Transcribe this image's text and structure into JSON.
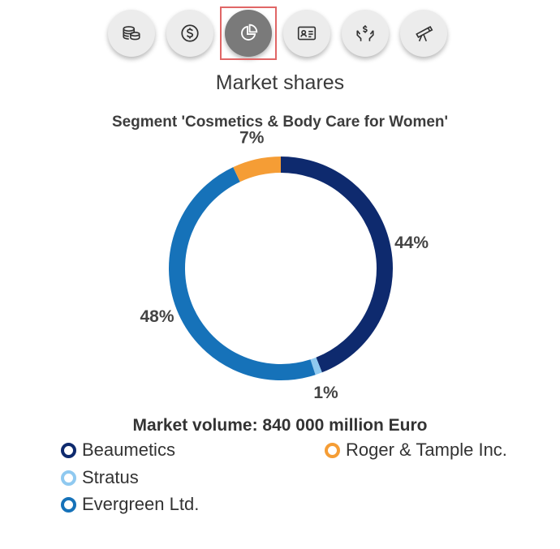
{
  "toolbar": {
    "buttons": [
      {
        "icon": "coins-stack-icon",
        "active": false
      },
      {
        "icon": "dollar-circle-icon",
        "active": false
      },
      {
        "icon": "pie-chart-icon",
        "active": true
      },
      {
        "icon": "id-card-icon",
        "active": false
      },
      {
        "icon": "hands-money-icon",
        "active": false
      },
      {
        "icon": "telescope-icon",
        "active": false
      }
    ]
  },
  "page": {
    "title": "Market shares"
  },
  "colors": {
    "beaumetics": "#0e2a6e",
    "roger_tample": "#f59d35",
    "stratus": "#8fc9f0",
    "evergreen": "#1672b9"
  },
  "chart_data": {
    "type": "pie",
    "subtype": "donut",
    "title": "Segment 'Cosmetics & Body Care for Women'",
    "slices": [
      {
        "name": "Beaumetics",
        "value": 44,
        "label": "44%",
        "color": "#0e2a6e"
      },
      {
        "name": "Stratus",
        "value": 1,
        "label": "1%",
        "color": "#8fc9f0"
      },
      {
        "name": "Evergreen Ltd.",
        "value": 48,
        "label": "48%",
        "color": "#1672b9"
      },
      {
        "name": "Roger & Tample Inc.",
        "value": 7,
        "label": "7%",
        "color": "#f59d35"
      }
    ],
    "footer": "Market volume: 840 000 million Euro",
    "legend_position": "bottom"
  },
  "legend": {
    "items": [
      {
        "label": "Beaumetics",
        "color": "#0e2a6e"
      },
      {
        "label": "Roger & Tample Inc.",
        "color": "#f59d35"
      },
      {
        "label": "Stratus",
        "color": "#8fc9f0"
      },
      {
        "label": "Evergreen Ltd.",
        "color": "#1672b9"
      }
    ]
  }
}
